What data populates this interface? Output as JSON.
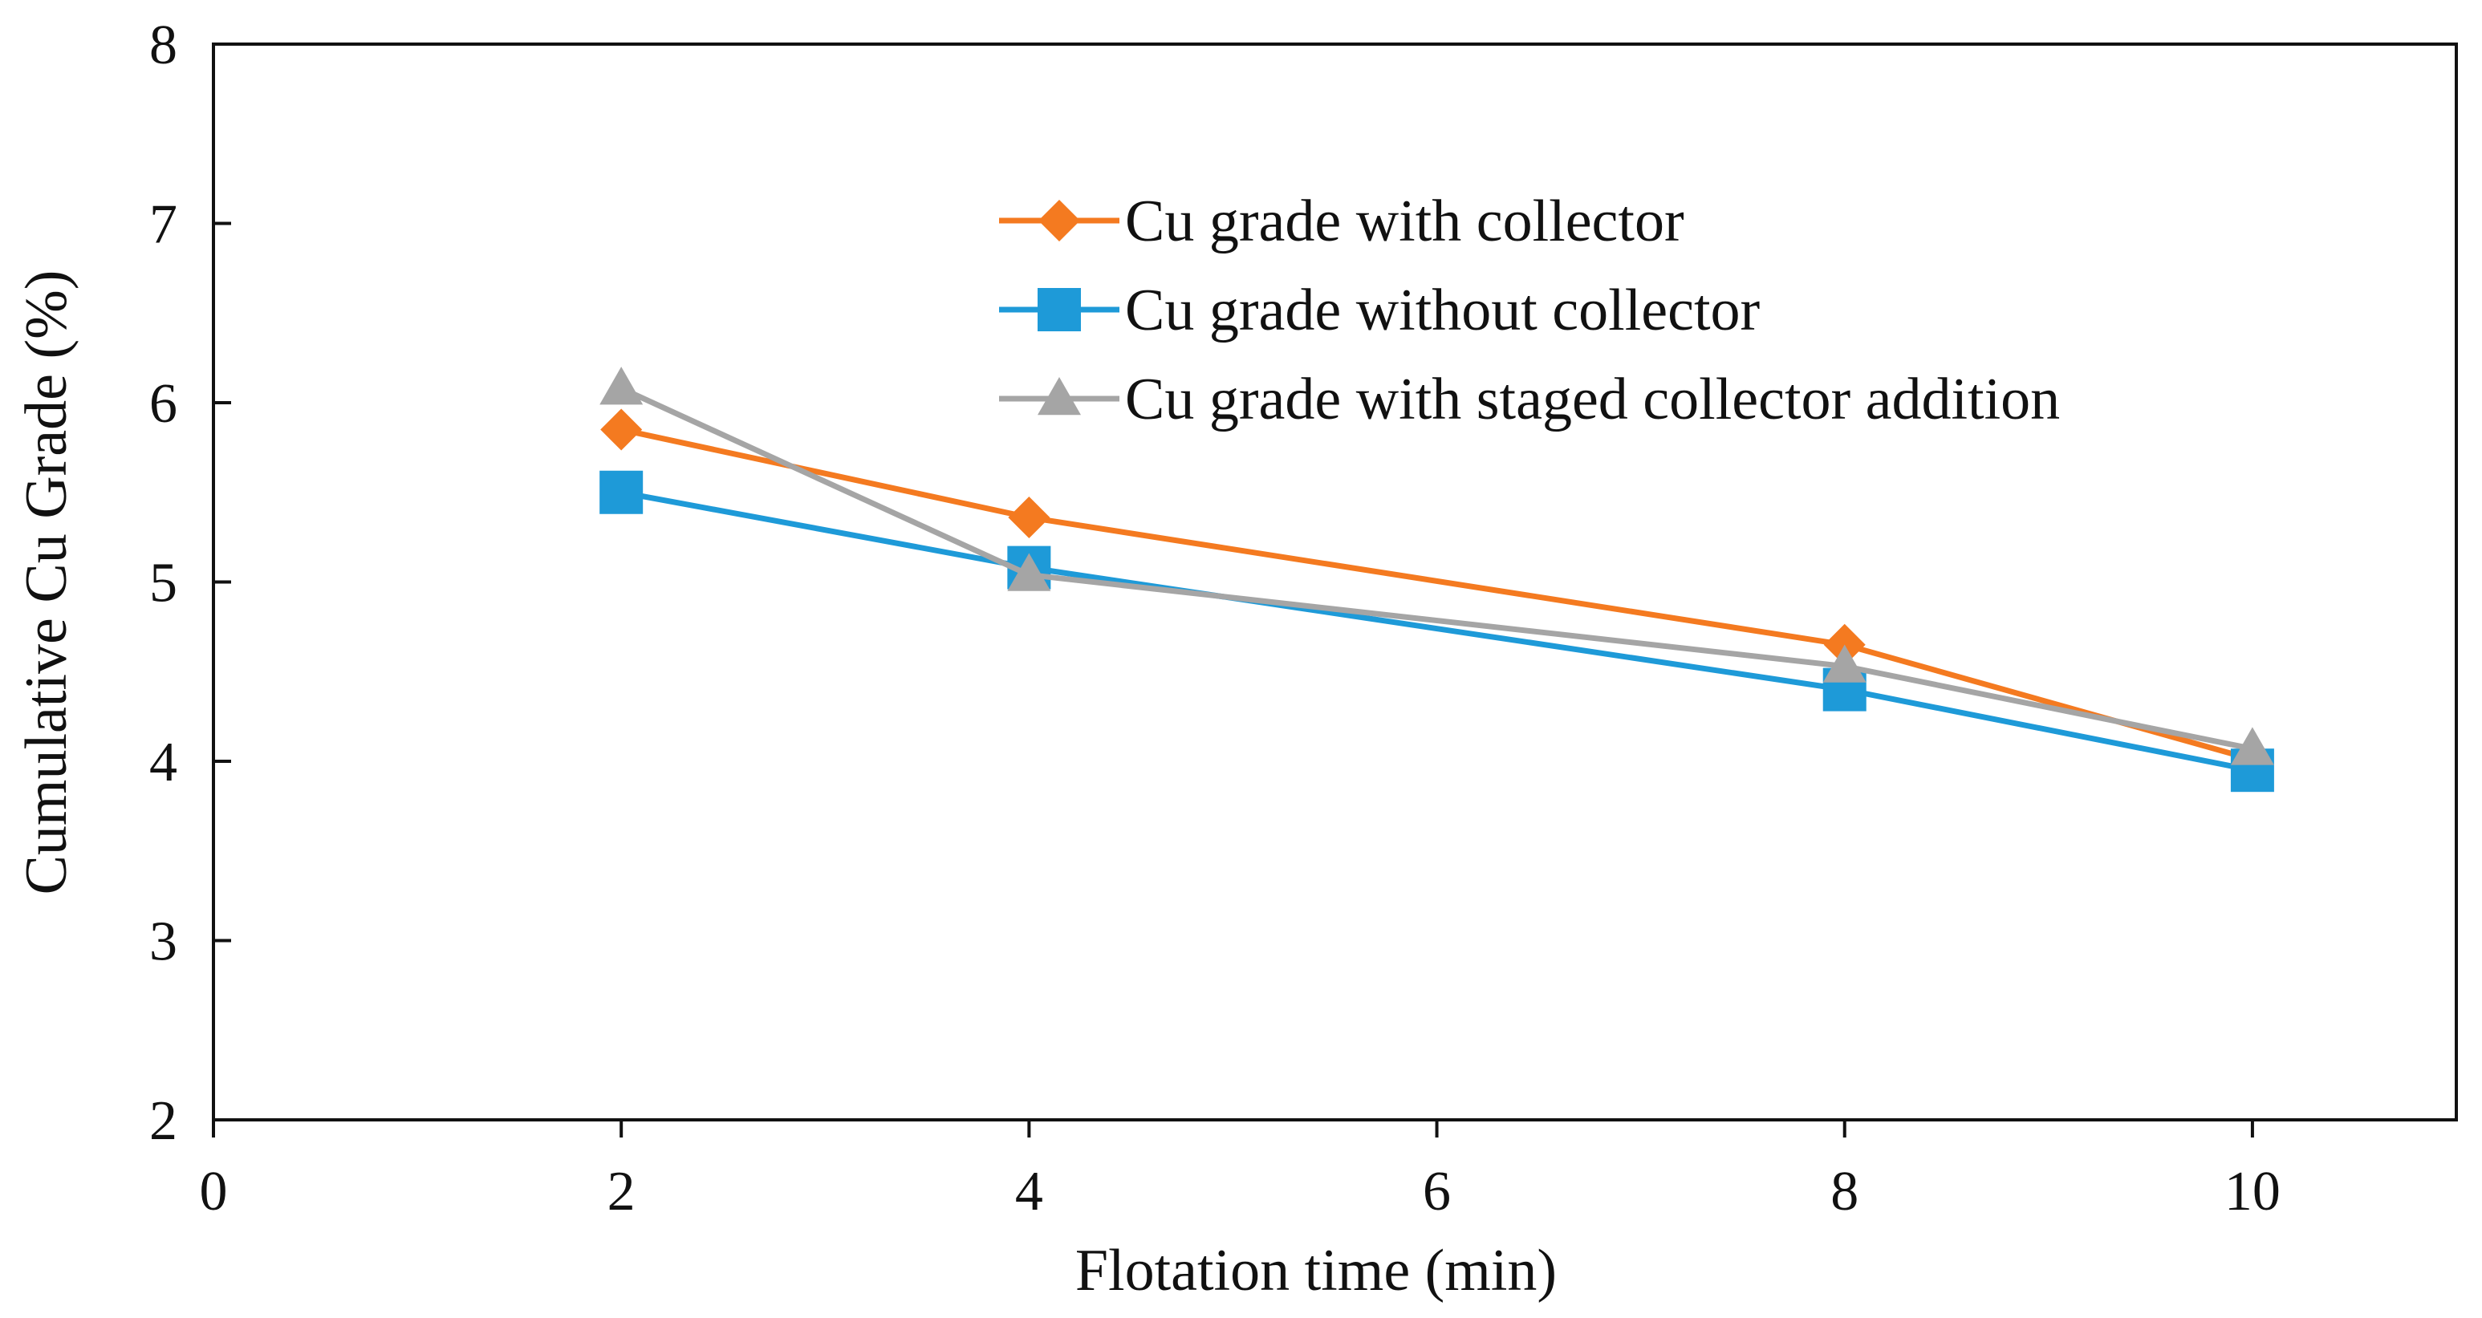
{
  "chart_data": {
    "type": "line",
    "title": "",
    "xlabel": "Flotation time (min)",
    "ylabel": "Cumulative Cu Grade (%)",
    "xlim": [
      0,
      11
    ],
    "ylim": [
      2,
      8
    ],
    "xticks": [
      0,
      2,
      4,
      6,
      8,
      10
    ],
    "yticks": [
      2,
      3,
      4,
      5,
      6,
      7,
      8
    ],
    "grid": false,
    "legend_position": "top-right",
    "series": [
      {
        "name": "Cu grade with collector",
        "color": "#F47A20",
        "marker": "diamond",
        "x": [
          2,
          4,
          8,
          10
        ],
        "values": [
          5.85,
          5.36,
          4.65,
          4.01
        ]
      },
      {
        "name": "Cu grade without collector",
        "color": "#1E9AD8",
        "marker": "square",
        "x": [
          2,
          4,
          8,
          10
        ],
        "values": [
          5.5,
          5.08,
          4.4,
          3.95
        ]
      },
      {
        "name": "Cu grade with staged collector addition",
        "color": "#A5A5A5",
        "marker": "triangle",
        "x": [
          2,
          4,
          8,
          10
        ],
        "values": [
          6.08,
          5.04,
          4.53,
          4.07
        ]
      }
    ]
  }
}
